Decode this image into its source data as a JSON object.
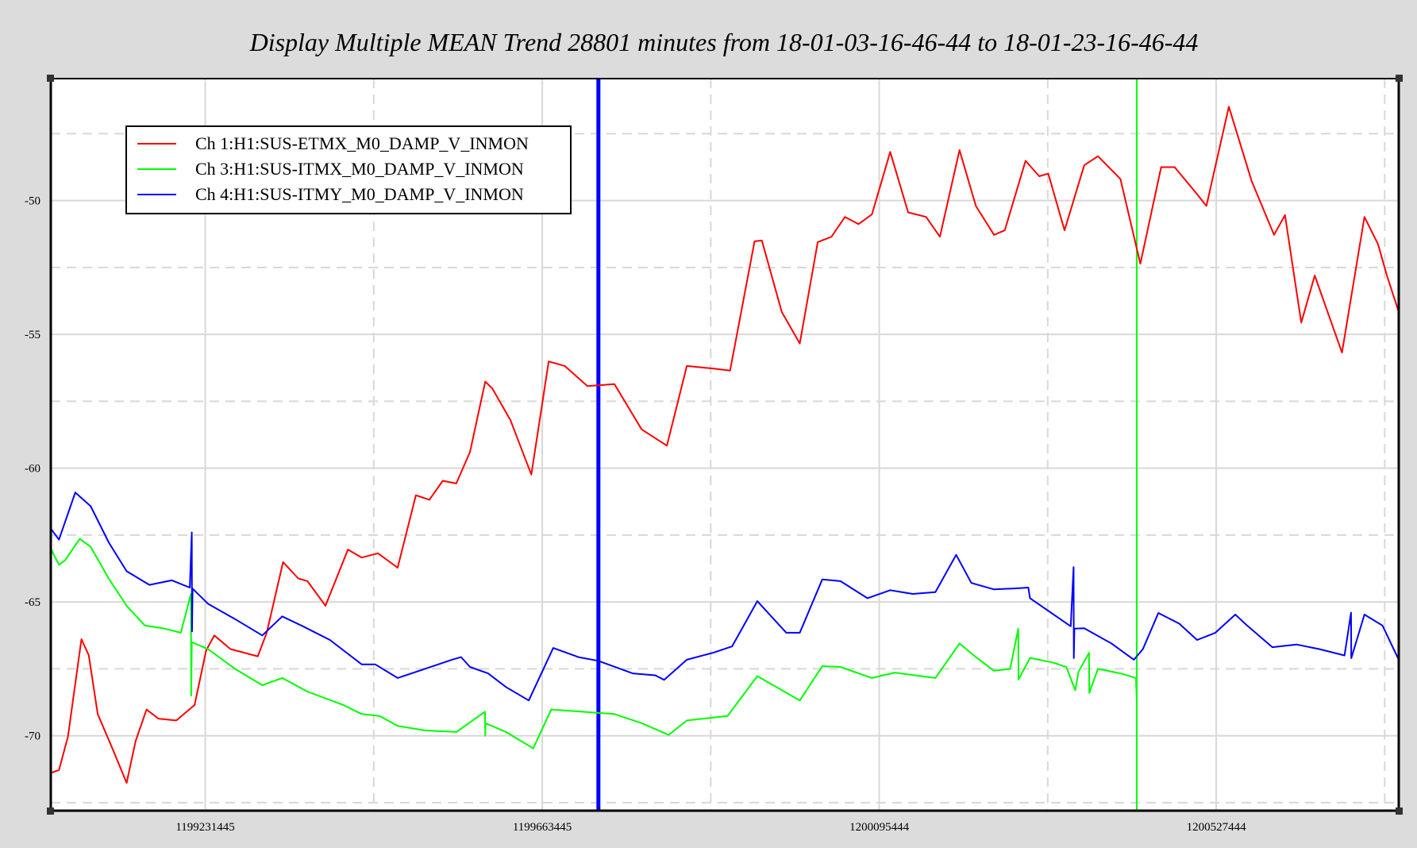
{
  "chart_data": {
    "type": "line",
    "title": "Display Multiple MEAN Trend 28801 minutes from 18-01-03-16-46-44 to 18-01-23-16-46-44",
    "xlabel": "",
    "ylabel": "",
    "x_units": "hours from plot start (GPS 1199033445)",
    "xlim": [
      0,
      480
    ],
    "ylim": [
      -72.8,
      -45.44
    ],
    "grid": true,
    "legend_position": "top-left",
    "x_ticks": [
      {
        "x": 55,
        "label": "1199231445"
      },
      {
        "x": 175,
        "label": "1199663445"
      },
      {
        "x": 295,
        "label": "1200095444"
      },
      {
        "x": 415,
        "label": "1200527444"
      }
    ],
    "x_minor_grid": [
      115,
      235,
      355,
      475
    ],
    "y_ticks": [
      {
        "y": -50,
        "label": "-50"
      },
      {
        "y": -55,
        "label": "-55"
      },
      {
        "y": -60,
        "label": "-60"
      },
      {
        "y": -65,
        "label": "-65"
      },
      {
        "y": -70,
        "label": "-70"
      }
    ],
    "y_minor_grid": [
      -47.5,
      -52.5,
      -57.5,
      -62.5,
      -67.5,
      -72.5
    ],
    "markers": [
      {
        "x": 195.0,
        "color": "#0000ff"
      },
      {
        "x": 386.7,
        "color": "#00ff00"
      }
    ],
    "series": [
      {
        "name": "Ch 1:H1:SUS-ETMX_M0_DAMP_V_INMON",
        "color": "#ff0000",
        "points": [
          [
            0,
            -71.39
          ],
          [
            2.9,
            -71.28
          ],
          [
            6.1,
            -70.03
          ],
          [
            10.9,
            -66.39
          ],
          [
            13.5,
            -66.99
          ],
          [
            16.7,
            -69.19
          ],
          [
            22.2,
            -70.54
          ],
          [
            27.0,
            -71.76
          ],
          [
            30.2,
            -70.2
          ],
          [
            34.1,
            -69.02
          ],
          [
            38.3,
            -69.36
          ],
          [
            44.7,
            -69.43
          ],
          [
            51.2,
            -68.85
          ],
          [
            55.3,
            -66.82
          ],
          [
            58.2,
            -66.25
          ],
          [
            64.0,
            -66.76
          ],
          [
            73.7,
            -67.03
          ],
          [
            76.9,
            -66.15
          ],
          [
            82.7,
            -63.51
          ],
          [
            88.1,
            -64.12
          ],
          [
            91.4,
            -64.22
          ],
          [
            97.8,
            -65.14
          ],
          [
            105.8,
            -63.04
          ],
          [
            110.7,
            -63.34
          ],
          [
            116.5,
            -63.18
          ],
          [
            123.5,
            -63.72
          ],
          [
            130.0,
            -61.01
          ],
          [
            134.8,
            -61.18
          ],
          [
            139.6,
            -60.47
          ],
          [
            144.4,
            -60.57
          ],
          [
            149.3,
            -59.39
          ],
          [
            154.7,
            -56.76
          ],
          [
            157.3,
            -57.03
          ],
          [
            163.7,
            -58.21
          ],
          [
            171.1,
            -60.24
          ],
          [
            177.3,
            -56.01
          ],
          [
            183.0,
            -56.18
          ],
          [
            191.1,
            -56.93
          ],
          [
            200.7,
            -56.86
          ],
          [
            210.4,
            -58.55
          ],
          [
            219.4,
            -59.16
          ],
          [
            226.5,
            -56.18
          ],
          [
            236.1,
            -56.28
          ],
          [
            241.9,
            -56.35
          ],
          [
            250.6,
            -51.52
          ],
          [
            253.2,
            -51.49
          ],
          [
            260.3,
            -54.16
          ],
          [
            266.7,
            -55.34
          ],
          [
            273.1,
            -51.55
          ],
          [
            278.0,
            -51.35
          ],
          [
            282.8,
            -50.61
          ],
          [
            287.6,
            -50.88
          ],
          [
            292.4,
            -50.51
          ],
          [
            298.9,
            -48.18
          ],
          [
            305.3,
            -50.44
          ],
          [
            311.7,
            -50.61
          ],
          [
            316.6,
            -51.35
          ],
          [
            323.6,
            -48.11
          ],
          [
            329.4,
            -50.2
          ],
          [
            335.9,
            -51.28
          ],
          [
            339.7,
            -51.11
          ],
          [
            347.1,
            -48.51
          ],
          [
            352.0,
            -49.09
          ],
          [
            355.2,
            -48.99
          ],
          [
            361.0,
            -51.11
          ],
          [
            368.0,
            -48.68
          ],
          [
            372.9,
            -48.34
          ],
          [
            380.9,
            -49.19
          ],
          [
            388.0,
            -52.36
          ],
          [
            395.4,
            -48.75
          ],
          [
            400.2,
            -48.75
          ],
          [
            408.2,
            -49.76
          ],
          [
            411.5,
            -50.2
          ],
          [
            419.5,
            -46.49
          ],
          [
            427.6,
            -49.26
          ],
          [
            435.6,
            -51.28
          ],
          [
            439.5,
            -50.54
          ],
          [
            445.3,
            -54.56
          ],
          [
            450.1,
            -52.8
          ],
          [
            459.8,
            -55.68
          ],
          [
            467.8,
            -50.61
          ],
          [
            472.6,
            -51.62
          ],
          [
            475.8,
            -52.8
          ],
          [
            480,
            -54.16
          ]
        ]
      },
      {
        "name": "Ch 3:H1:SUS-ITMX_M0_DAMP_V_INMON",
        "color": "#00ff00",
        "points": [
          [
            0,
            -63.01
          ],
          [
            2.9,
            -63.61
          ],
          [
            5.1,
            -63.44
          ],
          [
            10.3,
            -62.64
          ],
          [
            14.2,
            -62.94
          ],
          [
            20.6,
            -64.12
          ],
          [
            27.0,
            -65.14
          ],
          [
            33.5,
            -65.88
          ],
          [
            39.9,
            -65.98
          ],
          [
            46.3,
            -66.15
          ],
          [
            49.9,
            -64.7
          ],
          [
            50.0,
            -68.5
          ],
          [
            50.2,
            -66.5
          ],
          [
            56.0,
            -66.76
          ],
          [
            65.6,
            -67.5
          ],
          [
            75.3,
            -68.11
          ],
          [
            82.4,
            -67.84
          ],
          [
            91.4,
            -68.35
          ],
          [
            104.2,
            -68.85
          ],
          [
            110.7,
            -69.19
          ],
          [
            117.1,
            -69.26
          ],
          [
            123.5,
            -69.63
          ],
          [
            133.2,
            -69.8
          ],
          [
            144.4,
            -69.86
          ],
          [
            154.6,
            -69.1
          ],
          [
            154.7,
            -70.0
          ],
          [
            154.8,
            -69.53
          ],
          [
            162.1,
            -69.86
          ],
          [
            171.8,
            -70.47
          ],
          [
            178.2,
            -69.02
          ],
          [
            187.9,
            -69.09
          ],
          [
            200.7,
            -69.19
          ],
          [
            210.4,
            -69.53
          ],
          [
            220.0,
            -69.97
          ],
          [
            226.5,
            -69.43
          ],
          [
            241.0,
            -69.26
          ],
          [
            251.6,
            -67.77
          ],
          [
            266.7,
            -68.68
          ],
          [
            274.7,
            -67.4
          ],
          [
            281.2,
            -67.43
          ],
          [
            292.4,
            -67.84
          ],
          [
            300.5,
            -67.64
          ],
          [
            315.0,
            -67.84
          ],
          [
            323.6,
            -66.55
          ],
          [
            329.4,
            -67.06
          ],
          [
            335.9,
            -67.57
          ],
          [
            341.6,
            -67.5
          ],
          [
            344.5,
            -66.0
          ],
          [
            344.6,
            -67.9
          ],
          [
            348.7,
            -67.09
          ],
          [
            356.7,
            -67.26
          ],
          [
            361.6,
            -67.43
          ],
          [
            364.8,
            -68.3
          ],
          [
            366.0,
            -67.6
          ],
          [
            369.7,
            -66.9
          ],
          [
            369.8,
            -68.4
          ],
          [
            372.9,
            -67.5
          ],
          [
            380.9,
            -67.67
          ],
          [
            386.4,
            -67.84
          ],
          [
            386.7,
            -68.68
          ]
        ]
      },
      {
        "name": "Ch 4:H1:SUS-ITMY_M0_DAMP_V_INMON",
        "color": "#0000ff",
        "points": [
          [
            0,
            -62.26
          ],
          [
            2.9,
            -62.67
          ],
          [
            8.7,
            -60.91
          ],
          [
            14.2,
            -61.42
          ],
          [
            20.6,
            -62.77
          ],
          [
            27.0,
            -63.85
          ],
          [
            35.1,
            -64.36
          ],
          [
            43.1,
            -64.19
          ],
          [
            49.5,
            -64.46
          ],
          [
            50.2,
            -62.4
          ],
          [
            50.3,
            -66.1
          ],
          [
            50.5,
            -64.5
          ],
          [
            56.0,
            -65.07
          ],
          [
            65.6,
            -65.64
          ],
          [
            75.3,
            -66.25
          ],
          [
            82.4,
            -65.54
          ],
          [
            89.8,
            -65.91
          ],
          [
            99.4,
            -66.42
          ],
          [
            110.7,
            -67.33
          ],
          [
            115.5,
            -67.33
          ],
          [
            123.5,
            -67.84
          ],
          [
            133.2,
            -67.5
          ],
          [
            142.8,
            -67.16
          ],
          [
            146.1,
            -67.06
          ],
          [
            149.3,
            -67.43
          ],
          [
            155.7,
            -67.67
          ],
          [
            162.1,
            -68.18
          ],
          [
            170.2,
            -68.68
          ],
          [
            178.9,
            -66.72
          ],
          [
            187.9,
            -67.06
          ],
          [
            195.0,
            -67.2
          ],
          [
            207.2,
            -67.67
          ],
          [
            215.2,
            -67.74
          ],
          [
            218.4,
            -67.91
          ],
          [
            226.5,
            -67.16
          ],
          [
            236.1,
            -66.89
          ],
          [
            242.6,
            -66.66
          ],
          [
            251.6,
            -64.97
          ],
          [
            261.9,
            -66.15
          ],
          [
            266.7,
            -66.15
          ],
          [
            274.7,
            -64.16
          ],
          [
            281.2,
            -64.22
          ],
          [
            290.8,
            -64.86
          ],
          [
            298.9,
            -64.56
          ],
          [
            306.9,
            -64.7
          ],
          [
            315.0,
            -64.63
          ],
          [
            322.4,
            -63.24
          ],
          [
            327.8,
            -64.29
          ],
          [
            335.9,
            -64.53
          ],
          [
            343.9,
            -64.49
          ],
          [
            348.1,
            -64.46
          ],
          [
            348.7,
            -64.86
          ],
          [
            363.2,
            -65.91
          ],
          [
            364.2,
            -63.7
          ],
          [
            364.3,
            -67.1
          ],
          [
            364.5,
            -66.0
          ],
          [
            368.0,
            -65.98
          ],
          [
            377.7,
            -66.55
          ],
          [
            385.7,
            -67.16
          ],
          [
            388.9,
            -66.76
          ],
          [
            394.4,
            -65.41
          ],
          [
            401.8,
            -65.81
          ],
          [
            408.2,
            -66.42
          ],
          [
            414.7,
            -66.15
          ],
          [
            421.8,
            -65.47
          ],
          [
            426.0,
            -65.88
          ],
          [
            435.0,
            -66.69
          ],
          [
            443.6,
            -66.59
          ],
          [
            451.7,
            -66.76
          ],
          [
            460.7,
            -67.0
          ],
          [
            463.0,
            -65.4
          ],
          [
            463.1,
            -67.1
          ],
          [
            467.8,
            -65.47
          ],
          [
            474.2,
            -65.88
          ],
          [
            480,
            -67.16
          ]
        ]
      }
    ]
  }
}
